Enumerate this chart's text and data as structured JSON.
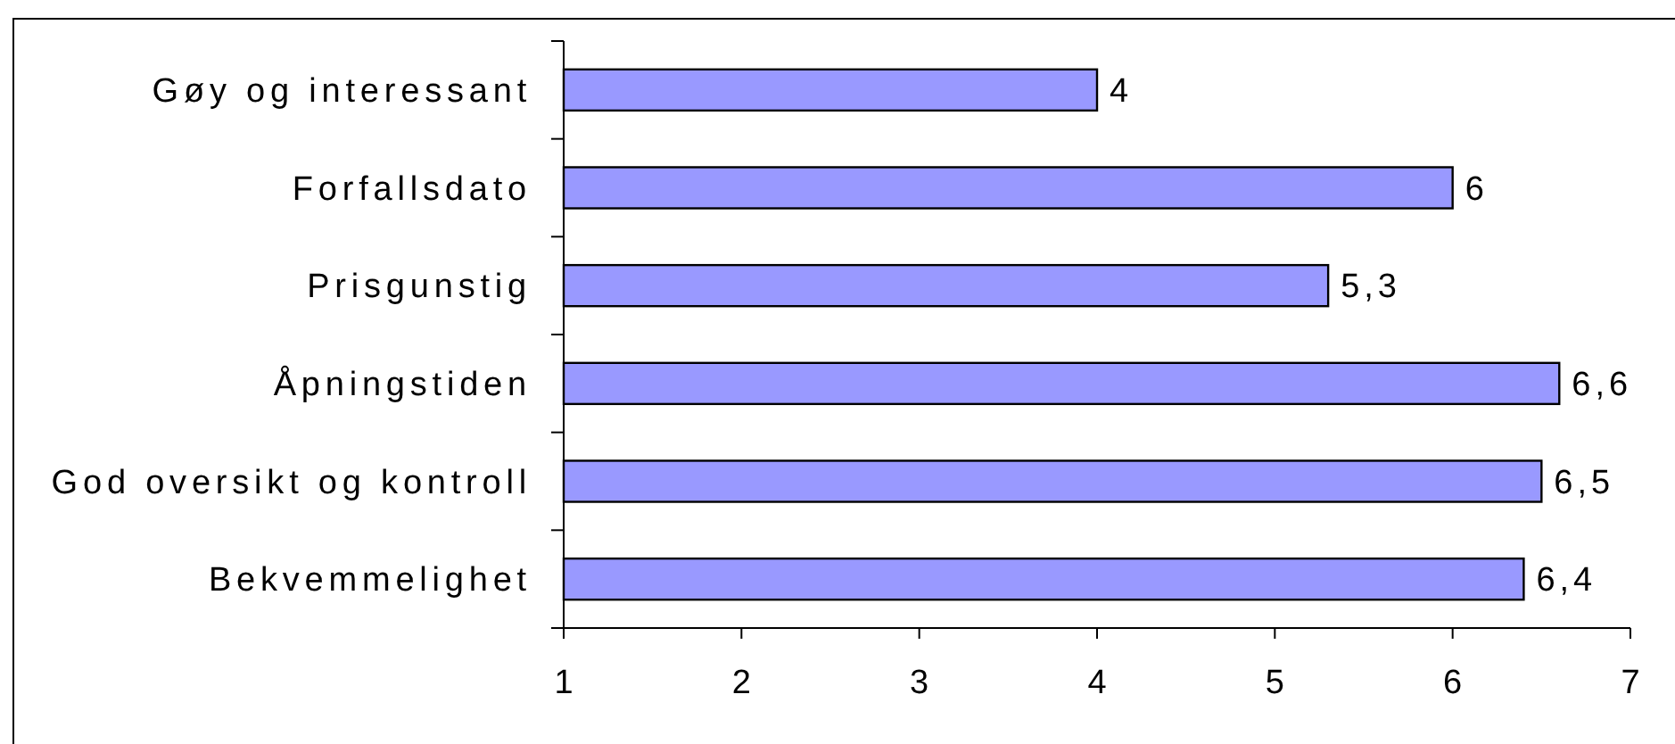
{
  "chart_data": {
    "type": "bar",
    "orientation": "horizontal",
    "categories": [
      "Gøy og interessant",
      "Forfallsdato",
      "Prisgunstig",
      "Åpningstiden",
      "God oversikt og kontroll",
      "Bekvemmelighet"
    ],
    "values": [
      4,
      6,
      5.3,
      6.6,
      6.5,
      6.4
    ],
    "value_labels": [
      "4",
      "6",
      "5,3",
      "6,6",
      "6,5",
      "6,4"
    ],
    "color": "#9999ff",
    "xlim": [
      1,
      7
    ],
    "xticks": [
      1,
      2,
      3,
      4,
      5,
      6,
      7
    ]
  }
}
